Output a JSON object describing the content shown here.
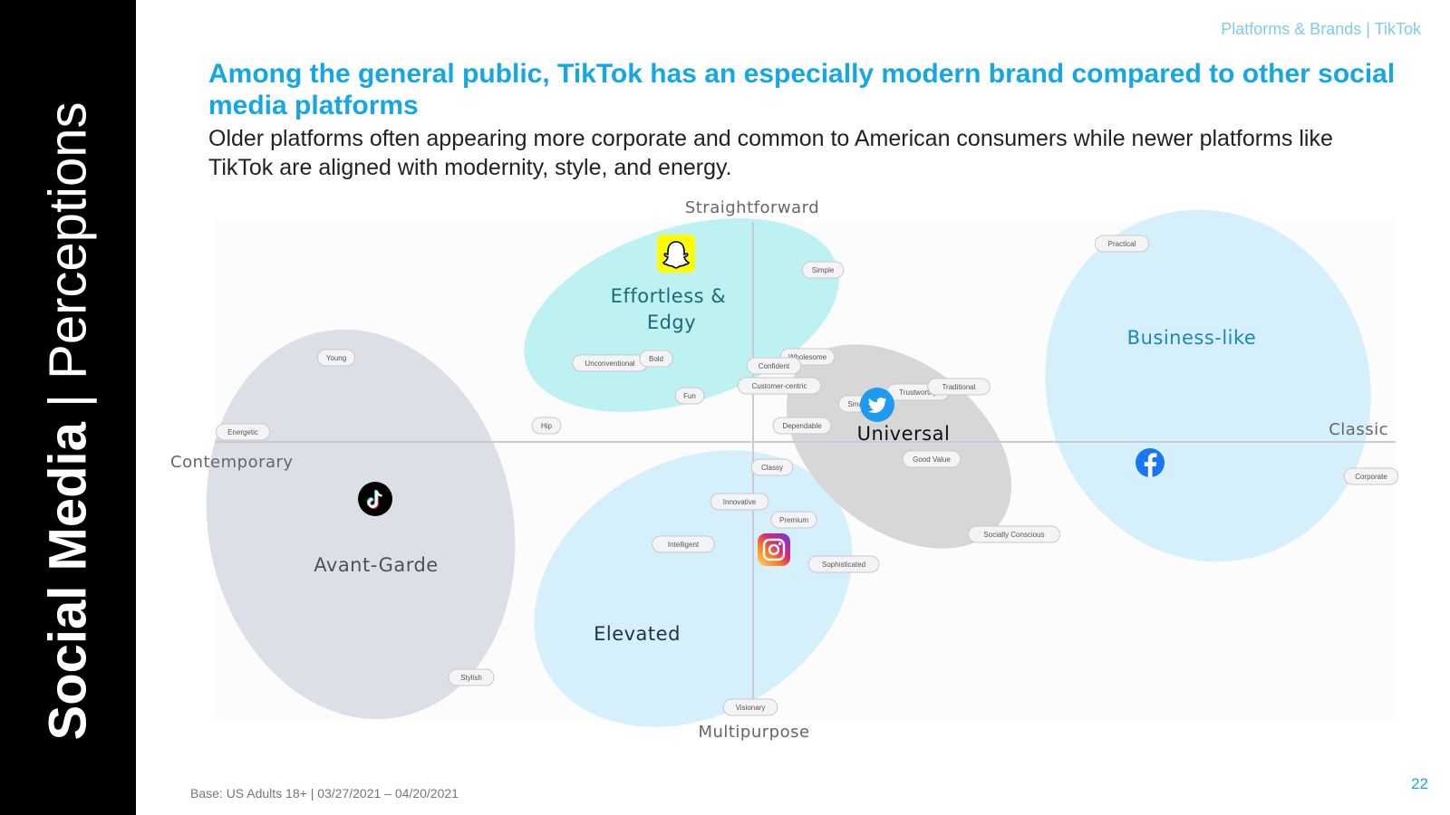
{
  "sidebar": {
    "title_bold": "Social Media",
    "title_light": " | Perceptions"
  },
  "header": {
    "breadcrumb": "Platforms & Brands | TikTok"
  },
  "slide": {
    "title": "Among the general public, TikTok has an especially modern brand compared to other social media platforms",
    "subtitle": "Older platforms often appearing more corporate and common to American consumers while newer platforms like TikTok are aligned with modernity, style, and energy.",
    "base_note": "Base: US Adults 18+ | 03/27/2021 – 04/20/2021",
    "page_number": "22"
  },
  "colors": {
    "sidebar_bg": "#000000",
    "accent": "#15a7e3",
    "cluster_gray": "#dcdfe5",
    "cluster_cyan": "#bdf1f2",
    "cluster_lightblue": "#d6f0fb",
    "cluster_universal": "#d7d7d7"
  },
  "axes": {
    "top": "Straightforward",
    "bottom": "Multipurpose",
    "left": "Contemporary",
    "right": "Classic"
  },
  "clusters": [
    {
      "id": "avant",
      "label": "Avant-Garde"
    },
    {
      "id": "effortless",
      "label": "Effortless & Edgy"
    },
    {
      "id": "elevated",
      "label": "Elevated"
    },
    {
      "id": "universal",
      "label": "Universal"
    },
    {
      "id": "business",
      "label": "Business-like"
    }
  ],
  "attributes": [
    {
      "label": "Young"
    },
    {
      "label": "Energetic"
    },
    {
      "label": "Hip"
    },
    {
      "label": "Stylish"
    },
    {
      "label": "Unconventional"
    },
    {
      "label": "Bold"
    },
    {
      "label": "Fun"
    },
    {
      "label": "Simple"
    },
    {
      "label": "Wholesome"
    },
    {
      "label": "Confident"
    },
    {
      "label": "Customer-centric"
    },
    {
      "label": "Smart"
    },
    {
      "label": "Trustworthy"
    },
    {
      "label": "Traditional"
    },
    {
      "label": "Dependable"
    },
    {
      "label": "Good Value"
    },
    {
      "label": "Classy"
    },
    {
      "label": "Innovative"
    },
    {
      "label": "Premium"
    },
    {
      "label": "Intelligent"
    },
    {
      "label": "Sophisticated"
    },
    {
      "label": "Socially Conscious"
    },
    {
      "label": "Visionary"
    },
    {
      "label": "Practical"
    },
    {
      "label": "Corporate"
    }
  ],
  "brands": [
    {
      "name": "TikTok",
      "icon": "tiktok-icon"
    },
    {
      "name": "Snapchat",
      "icon": "snapchat-icon"
    },
    {
      "name": "Instagram",
      "icon": "instagram-icon"
    },
    {
      "name": "Twitter",
      "icon": "twitter-icon"
    },
    {
      "name": "Facebook",
      "icon": "facebook-icon"
    }
  ]
}
